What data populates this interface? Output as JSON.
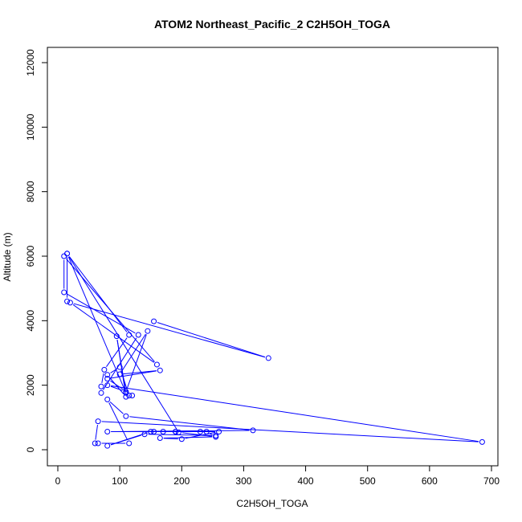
{
  "chart_data": {
    "type": "line",
    "title": "ATOM2 Northeast_Pacific_2 C2H5OH_TOGA",
    "xlabel": "C2H5OH_TOGA",
    "ylabel": "Altitude (m)",
    "xlim": [
      0,
      700
    ],
    "ylim": [
      0,
      12000
    ],
    "x_ticks": [
      0,
      100,
      200,
      300,
      400,
      500,
      600,
      700
    ],
    "y_ticks": [
      0,
      2000,
      4000,
      6000,
      8000,
      10000,
      12000
    ],
    "grid": false,
    "legend": "none",
    "color": "#0000ff",
    "series": [
      {
        "points": [
          [
            155,
            3980
          ],
          [
            340,
            2840
          ],
          [
            20,
            4560
          ],
          [
            160,
            2640
          ],
          [
            10,
            6000
          ],
          [
            10,
            4880
          ],
          [
            130,
            3560
          ],
          [
            70,
            1760
          ],
          [
            70,
            1960
          ],
          [
            75,
            2480
          ],
          [
            115,
            3560
          ],
          [
            15,
            6080
          ],
          [
            110,
            1760
          ],
          [
            95,
            3520
          ],
          [
            110,
            1640
          ],
          [
            80,
            2320
          ],
          [
            100,
            2560
          ],
          [
            115,
            1680
          ],
          [
            120,
            1680
          ],
          [
            80,
            2200
          ],
          [
            165,
            2460
          ],
          [
            100,
            2340
          ],
          [
            145,
            3680
          ],
          [
            110,
            1800
          ],
          [
            80,
            2000
          ],
          [
            685,
            240
          ],
          [
            65,
            880
          ],
          [
            60,
            200
          ],
          [
            65,
            200
          ],
          [
            115,
            200
          ],
          [
            80,
            1560
          ],
          [
            110,
            1040
          ],
          [
            315,
            600
          ],
          [
            80,
            560
          ],
          [
            190,
            560
          ],
          [
            240,
            560
          ],
          [
            255,
            400
          ],
          [
            255,
            440
          ],
          [
            140,
            480
          ],
          [
            80,
            120
          ],
          [
            150,
            560
          ],
          [
            155,
            560
          ],
          [
            170,
            560
          ],
          [
            230,
            560
          ],
          [
            190,
            560
          ],
          [
            260,
            560
          ],
          [
            200,
            330
          ],
          [
            165,
            360
          ],
          [
            255,
            400
          ],
          [
            195,
            540
          ],
          [
            15,
            6080
          ],
          [
            15,
            4600
          ]
        ]
      }
    ]
  }
}
